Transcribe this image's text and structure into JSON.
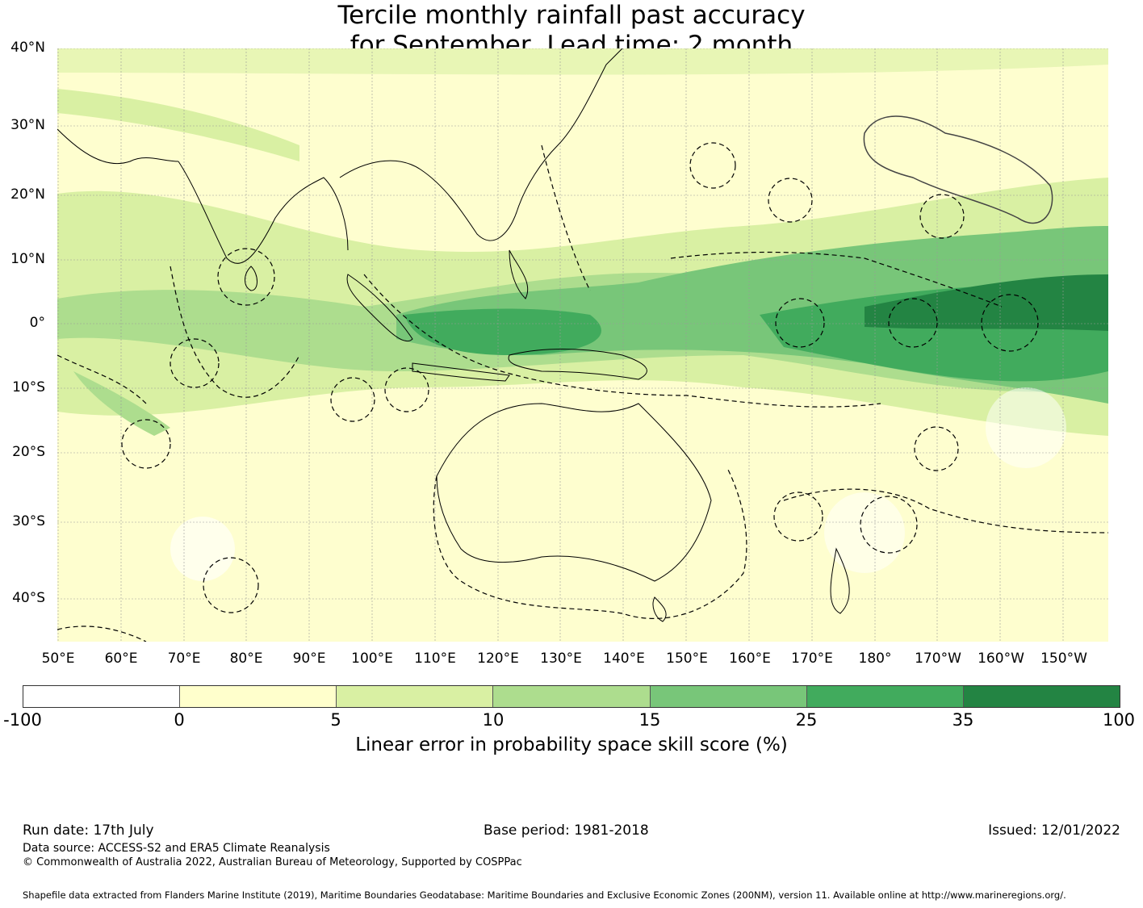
{
  "title": {
    "line1": "Tercile monthly rainfall past accuracy",
    "line2": "for September, Lead time: 2 month"
  },
  "map": {
    "lat_labels": [
      "40°N",
      "30°N",
      "20°N",
      "10°N",
      "0°",
      "10°S",
      "20°S",
      "30°S",
      "40°S"
    ],
    "lon_labels": [
      "50°E",
      "60°E",
      "70°E",
      "80°E",
      "90°E",
      "100°E",
      "110°E",
      "120°E",
      "130°E",
      "140°E",
      "150°E",
      "160°E",
      "170°E",
      "180°",
      "170°W",
      "160°W",
      "150°W"
    ],
    "land_color": "#000000",
    "boundary_style": "dashed"
  },
  "colorbar": {
    "ticks": [
      "-100",
      "0",
      "5",
      "10",
      "15",
      "25",
      "35",
      "100"
    ],
    "colors": [
      "#ffffff",
      "#ffffcc",
      "#d9f0a3",
      "#addd8e",
      "#78c679",
      "#41ab5d",
      "#238443"
    ],
    "label": "Linear error in probability space skill score (%)"
  },
  "footer": {
    "run_date": "Run date: 17th July",
    "base_period": "Base period: 1981-2018",
    "issued": "Issued: 12/01/2022",
    "data_source": "Data source: ACCESS-S2 and ERA5 Climate Reanalysis",
    "copyright": "© Commonwealth of Australia 2022, Australian Bureau of Meteorology, Supported by COSPPac",
    "shapefile": "Shapefile data extracted from Flanders Marine Institute (2019), Maritime Boundaries Geodatabase: Maritime Boundaries and Exclusive Economic Zones (200NM), version 11. Available online at http://www.marineregions.org/."
  }
}
